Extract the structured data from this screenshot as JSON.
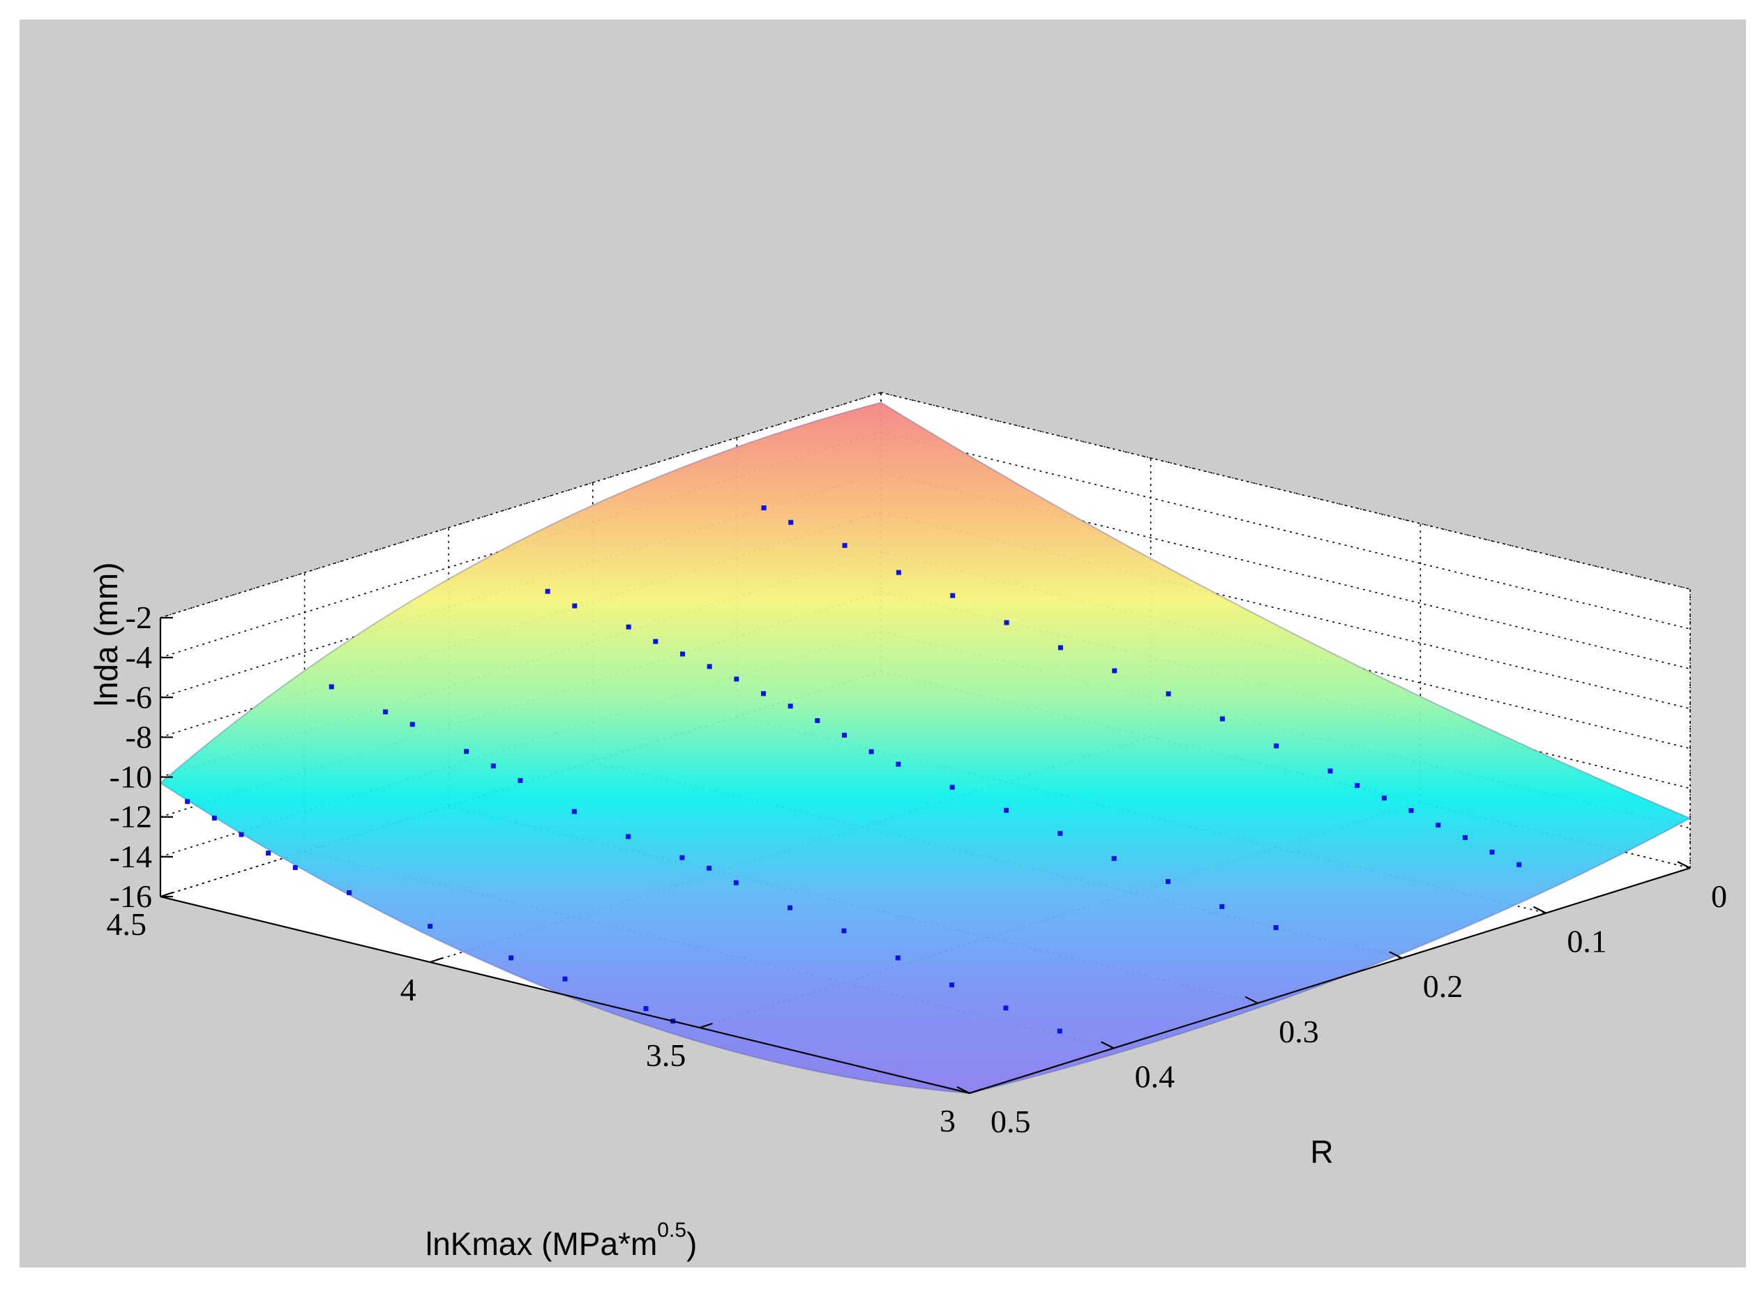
{
  "chart_data": {
    "type": "surface",
    "title": "",
    "xlabel": "R",
    "ylabel_main": "lnKmax (MPa*m",
    "ylabel_sup": "0.5",
    "ylabel_close": ")",
    "zlabel": "lnda (mm)",
    "xlim": [
      0,
      0.5
    ],
    "ylim": [
      3,
      4.5
    ],
    "zlim": [
      -16,
      -2
    ],
    "x_ticks": [
      "0",
      "0.1",
      "0.2",
      "0.3",
      "0.4",
      "0.5"
    ],
    "y_ticks": [
      "3",
      "3.5",
      "4",
      "4.5"
    ],
    "z_ticks": [
      "-2",
      "-4",
      "-6",
      "-8",
      "-10",
      "-12",
      "-14",
      "-16"
    ],
    "grid": true,
    "colormap": [
      "#8a7ef0",
      "#7a90f5",
      "#5fb6f5",
      "#0ff0ee",
      "#9ef6a6",
      "#f4f47a",
      "#f8b87a",
      "#f38585"
    ],
    "background": "#cccccc",
    "marker_color": "#0a14e0",
    "surface_corners": [
      {
        "R": 0,
        "lnKmax": 4.5,
        "lnda": -2.5
      },
      {
        "R": 0.5,
        "lnKmax": 4.5,
        "lnda": -10.3
      },
      {
        "R": 0.5,
        "lnKmax": 3,
        "lnda": -16
      },
      {
        "R": 0,
        "lnKmax": 3,
        "lnda": -13.5
      }
    ],
    "scatter_series": [
      {
        "R": 0.5,
        "points": [
          [
            4.45,
            -10.9
          ],
          [
            4.4,
            -11.4
          ],
          [
            4.35,
            -11.9
          ],
          [
            4.3,
            -12.5
          ],
          [
            4.25,
            -12.9
          ],
          [
            4.15,
            -13.5
          ],
          [
            4.0,
            -14.2
          ],
          [
            3.85,
            -14.8
          ],
          [
            3.75,
            -15.2
          ],
          [
            3.6,
            -15.7
          ],
          [
            3.55,
            -16.0
          ]
        ]
      },
      {
        "R": 0.4,
        "points": [
          [
            4.45,
            -7.4
          ],
          [
            4.35,
            -8.0
          ],
          [
            4.3,
            -8.3
          ],
          [
            4.2,
            -9.0
          ],
          [
            4.15,
            -9.4
          ],
          [
            4.1,
            -9.8
          ],
          [
            4.0,
            -10.7
          ],
          [
            3.9,
            -11.3
          ],
          [
            3.8,
            -11.7
          ],
          [
            3.75,
            -11.9
          ],
          [
            3.7,
            -12.3
          ],
          [
            3.6,
            -12.9
          ],
          [
            3.5,
            -13.4
          ],
          [
            3.4,
            -14.1
          ],
          [
            3.3,
            -14.8
          ],
          [
            3.2,
            -15.3
          ],
          [
            3.1,
            -15.8
          ]
        ]
      },
      {
        "R": 0.25,
        "points": [
          [
            4.45,
            -6.0
          ],
          [
            4.4,
            -6.4
          ],
          [
            4.3,
            -6.8
          ],
          [
            4.25,
            -7.2
          ],
          [
            4.2,
            -7.5
          ],
          [
            4.15,
            -7.8
          ],
          [
            4.1,
            -8.1
          ],
          [
            4.05,
            -8.5
          ],
          [
            4.0,
            -8.8
          ],
          [
            3.95,
            -9.2
          ],
          [
            3.9,
            -9.6
          ],
          [
            3.85,
            -10.1
          ],
          [
            3.8,
            -10.4
          ],
          [
            3.7,
            -10.9
          ],
          [
            3.6,
            -11.4
          ],
          [
            3.5,
            -11.9
          ],
          [
            3.4,
            -12.5
          ],
          [
            3.3,
            -13.0
          ],
          [
            3.2,
            -13.6
          ],
          [
            3.1,
            -14.0
          ]
        ]
      },
      {
        "R": 0.1,
        "points": [
          [
            4.45,
            -5.2
          ],
          [
            4.4,
            -5.6
          ],
          [
            4.3,
            -6.1
          ],
          [
            4.2,
            -6.8
          ],
          [
            4.1,
            -7.3
          ],
          [
            4.0,
            -8.0
          ],
          [
            3.9,
            -8.6
          ],
          [
            3.8,
            -9.1
          ],
          [
            3.7,
            -9.6
          ],
          [
            3.6,
            -10.2
          ],
          [
            3.5,
            -10.9
          ],
          [
            3.4,
            -11.5
          ],
          [
            3.35,
            -11.9
          ],
          [
            3.3,
            -12.2
          ],
          [
            3.25,
            -12.5
          ],
          [
            3.2,
            -12.9
          ],
          [
            3.15,
            -13.2
          ],
          [
            3.1,
            -13.6
          ],
          [
            3.05,
            -13.9
          ]
        ]
      }
    ]
  }
}
